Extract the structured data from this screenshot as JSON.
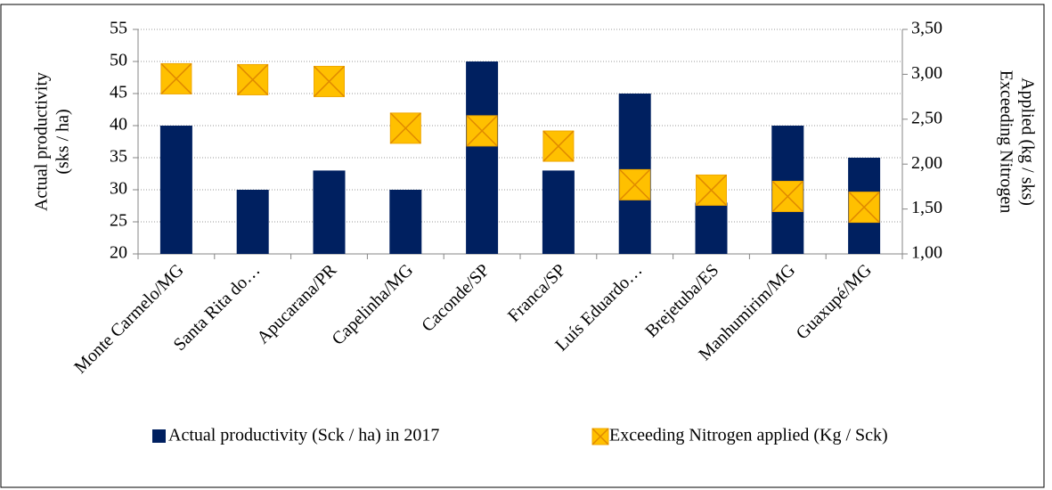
{
  "chart_data": {
    "type": "bar_marker",
    "y_label": [
      "Actual productivity",
      "(sks / ha)"
    ],
    "y2_label": [
      "Exceeding Nitrogen",
      "Applied (kg  / sks)"
    ],
    "categories": [
      "Monte Carmelo/MG",
      "Santa Rita do…",
      "Apucarana/PR",
      "Capelinha/MG",
      "Caconde/SP",
      "Franca/SP",
      "Luís Eduardo…",
      "Brejetuba/ES",
      "Manhumirim/MG",
      "Guaxupé/MG"
    ],
    "series": [
      {
        "name": "Actual productivity (Sck / ha) in 2017",
        "color": "#002060",
        "kind": "bar",
        "values": [
          40,
          30,
          33,
          30,
          50,
          33,
          45,
          28,
          40,
          35
        ]
      },
      {
        "name": "Exceeding Nitrogen applied (Kg  / Sck)",
        "color": "#ffc000",
        "kind": "marker",
        "axis": "y2",
        "values": [
          2.95,
          2.94,
          2.92,
          2.4,
          2.37,
          2.2,
          1.77,
          1.71,
          1.64,
          1.52
        ]
      }
    ],
    "ylim": [
      20,
      55
    ],
    "yticks": [
      20,
      25,
      30,
      35,
      40,
      45,
      50,
      55
    ],
    "y2lim": [
      1,
      3.5
    ],
    "y2ticks": [
      {
        "value": 1,
        "label": "1,00"
      },
      {
        "value": 1.5,
        "label": "1,50"
      },
      {
        "value": 2,
        "label": "2,00"
      },
      {
        "value": 2.5,
        "label": "2,50"
      },
      {
        "value": 3,
        "label": "3,00"
      },
      {
        "value": 3.5,
        "label": "3,50"
      }
    ],
    "grid": true
  }
}
